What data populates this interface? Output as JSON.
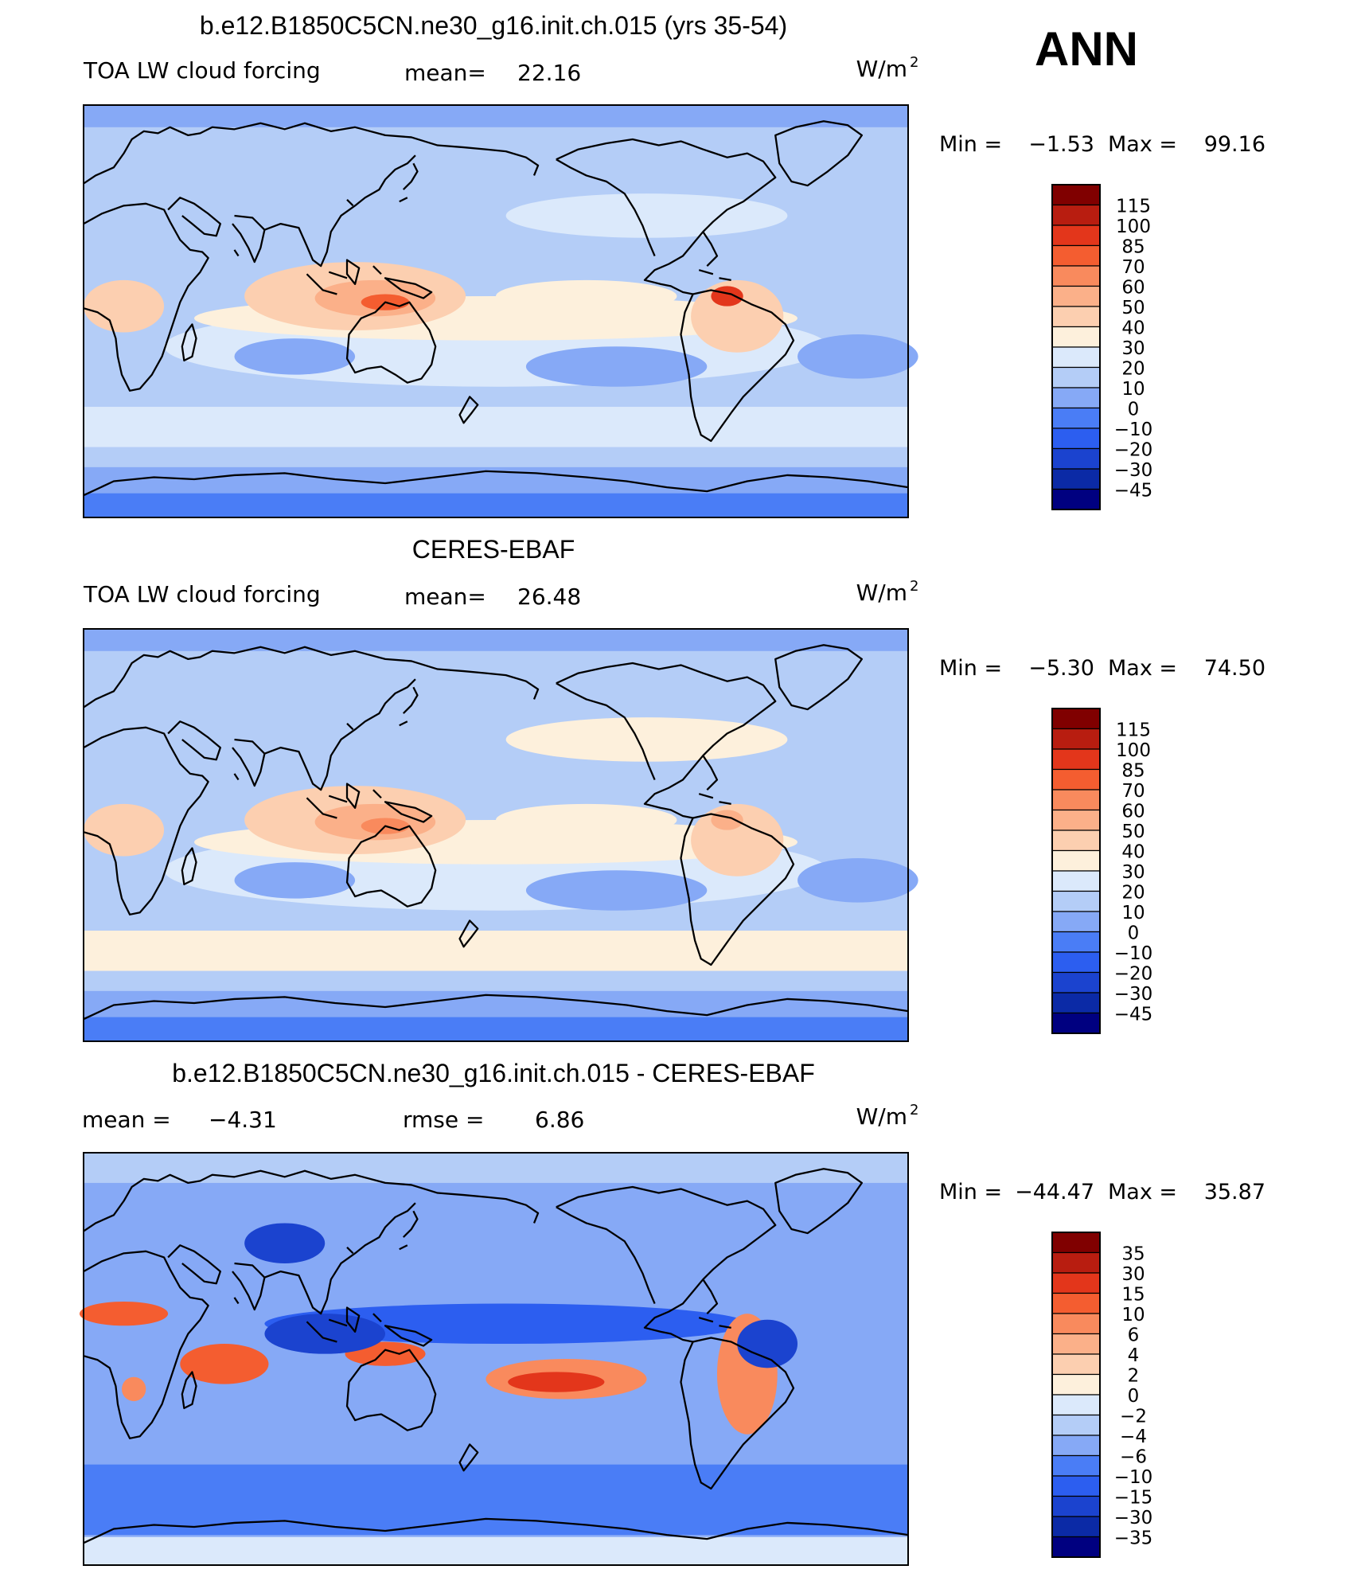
{
  "header": {
    "season": "ANN",
    "units": "W/m",
    "units_sup": "2"
  },
  "palettes": {
    "abs": [
      "#000080",
      "#0b2aa6",
      "#1b43cf",
      "#2c5ef0",
      "#4a7df6",
      "#86a9f6",
      "#b4cdf7",
      "#dbe9fb",
      "#fdf0dc",
      "#fccfb0",
      "#fbb089",
      "#f98a5d",
      "#f45d30",
      "#e3361b",
      "#b81d10",
      "#800000"
    ],
    "diff": [
      "#000080",
      "#0b2aa6",
      "#1b43cf",
      "#2c5ef0",
      "#4a7df6",
      "#86a9f6",
      "#b4cdf7",
      "#dbe9fb",
      "#fdf0dc",
      "#fccfb0",
      "#fbb089",
      "#f98a5d",
      "#f45d30",
      "#e3361b",
      "#b81d10",
      "#800000"
    ]
  },
  "panels": [
    {
      "title": "b.e12.B1850C5CN.ne30_g16.init.ch.015 (yrs 35-54)",
      "variable": "TOA LW cloud forcing",
      "stat1_label": "mean=",
      "stat1_value": "22.16",
      "stat2_label": "",
      "stat2_value": "",
      "min_label": "Min =",
      "min_value": "−1.53",
      "max_label": "Max =",
      "max_value": "99.16",
      "palette": "abs",
      "colorbar_labels": [
        "115",
        "100",
        "85",
        "70",
        "60",
        "50",
        "40",
        "30",
        "20",
        "10",
        "0",
        "−10",
        "−20",
        "−30",
        "−45"
      ]
    },
    {
      "title": "CERES-EBAF",
      "variable": "TOA LW cloud forcing",
      "stat1_label": "mean=",
      "stat1_value": "26.48",
      "stat2_label": "",
      "stat2_value": "",
      "min_label": "Min =",
      "min_value": "−5.30",
      "max_label": "Max =",
      "max_value": "74.50",
      "palette": "abs",
      "colorbar_labels": [
        "115",
        "100",
        "85",
        "70",
        "60",
        "50",
        "40",
        "30",
        "20",
        "10",
        "0",
        "−10",
        "−20",
        "−30",
        "−45"
      ]
    },
    {
      "title": "b.e12.B1850C5CN.ne30_g16.init.ch.015 - CERES-EBAF",
      "variable": "",
      "stat1_label": "mean =",
      "stat1_value": "−4.31",
      "stat2_label": "rmse =",
      "stat2_value": "6.86",
      "min_label": "Min =",
      "min_value": "−44.47",
      "max_label": "Max =",
      "max_value": "35.87",
      "palette": "diff",
      "colorbar_labels": [
        "35",
        "30",
        "15",
        "10",
        "6",
        "4",
        "2",
        "0",
        "−2",
        "−4",
        "−6",
        "−10",
        "−15",
        "−30",
        "−35"
      ]
    }
  ]
}
